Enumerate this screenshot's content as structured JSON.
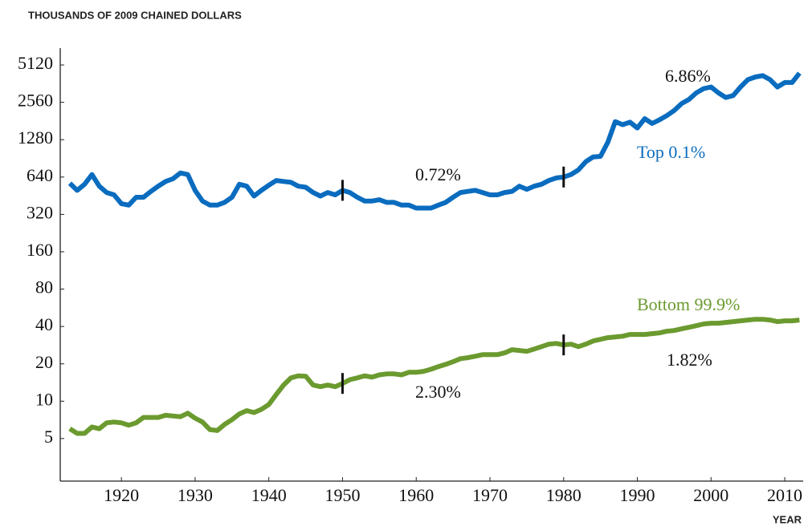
{
  "chart_data": {
    "type": "line",
    "ylabel": "THOUSANDS OF 2009 CHAINED DOLLARS",
    "xlabel": "YEAR",
    "log_scale_y": true,
    "x": [
      1913,
      1914,
      1915,
      1916,
      1917,
      1918,
      1919,
      1920,
      1921,
      1922,
      1923,
      1924,
      1925,
      1926,
      1927,
      1928,
      1929,
      1930,
      1931,
      1932,
      1933,
      1934,
      1935,
      1936,
      1937,
      1938,
      1939,
      1940,
      1941,
      1942,
      1943,
      1944,
      1945,
      1946,
      1947,
      1948,
      1949,
      1950,
      1951,
      1952,
      1953,
      1954,
      1955,
      1956,
      1957,
      1958,
      1959,
      1960,
      1961,
      1962,
      1963,
      1964,
      1965,
      1966,
      1967,
      1968,
      1969,
      1970,
      1971,
      1972,
      1973,
      1974,
      1975,
      1976,
      1977,
      1978,
      1979,
      1980,
      1981,
      1982,
      1983,
      1984,
      1985,
      1986,
      1987,
      1988,
      1989,
      1990,
      1991,
      1992,
      1993,
      1994,
      1995,
      1996,
      1997,
      1998,
      1999,
      2000,
      2001,
      2002,
      2003,
      2004,
      2005,
      2006,
      2007,
      2008,
      2009,
      2010,
      2011,
      2012
    ],
    "series": [
      {
        "name": "Top 0.1%",
        "color": "#0a6cbf",
        "values": [
          570,
          500,
          560,
          670,
          540,
          480,
          460,
          390,
          380,
          440,
          440,
          490,
          540,
          590,
          620,
          690,
          670,
          500,
          410,
          380,
          380,
          400,
          440,
          560,
          540,
          450,
          500,
          550,
          600,
          590,
          580,
          540,
          530,
          480,
          450,
          480,
          460,
          500,
          480,
          440,
          410,
          410,
          420,
          400,
          400,
          380,
          380,
          360,
          360,
          360,
          380,
          400,
          440,
          480,
          490,
          500,
          480,
          460,
          460,
          480,
          490,
          540,
          510,
          540,
          560,
          600,
          630,
          640,
          670,
          730,
          850,
          930,
          940,
          1220,
          1790,
          1690,
          1770,
          1590,
          1890,
          1730,
          1850,
          2000,
          2200,
          2500,
          2700,
          3050,
          3300,
          3400,
          3050,
          2800,
          2900,
          3400,
          3900,
          4100,
          4200,
          3900,
          3400,
          3700,
          3700,
          4400
        ]
      },
      {
        "name": "Bottom 99.9%",
        "color": "#6b9a2f",
        "values": [
          6.0,
          5.5,
          5.5,
          6.2,
          6.0,
          6.7,
          6.8,
          6.7,
          6.4,
          6.7,
          7.4,
          7.4,
          7.4,
          7.7,
          7.6,
          7.5,
          8.0,
          7.3,
          6.8,
          5.9,
          5.8,
          6.5,
          7.1,
          7.9,
          8.4,
          8.1,
          8.6,
          9.4,
          11.3,
          13.5,
          15.4,
          16.0,
          15.9,
          13.5,
          13.1,
          13.5,
          13.1,
          13.9,
          14.9,
          15.4,
          16.0,
          15.6,
          16.3,
          16.6,
          16.6,
          16.3,
          17.1,
          17.1,
          17.4,
          18.1,
          19.0,
          19.8,
          20.8,
          22.0,
          22.4,
          23.0,
          23.7,
          23.7,
          23.7,
          24.5,
          26.0,
          25.6,
          25.2,
          26.3,
          27.5,
          28.8,
          29.2,
          28.4,
          28.8,
          27.5,
          28.8,
          30.6,
          31.5,
          32.5,
          32.9,
          33.4,
          34.5,
          34.5,
          34.5,
          35.0,
          35.5,
          36.6,
          37.1,
          38.3,
          39.4,
          40.6,
          41.9,
          42.5,
          42.5,
          43.1,
          43.8,
          44.4,
          45.1,
          45.7,
          45.7,
          45.1,
          43.8,
          44.4,
          44.4,
          45.1
        ]
      }
    ],
    "breaks": [
      1950,
      1980
    ],
    "annotations": [
      "0.72%",
      "6.86%",
      "2.30%",
      "1.82%"
    ],
    "xlim": [
      1911.7,
      2012.5
    ],
    "xticks": [
      1920,
      1930,
      1940,
      1950,
      1960,
      1970,
      1980,
      1990,
      2000,
      2010
    ],
    "ylim": [
      2.27,
      7000
    ],
    "yticks": [
      5,
      10,
      20,
      40,
      80,
      160,
      320,
      640,
      1280,
      2560,
      5120
    ]
  }
}
